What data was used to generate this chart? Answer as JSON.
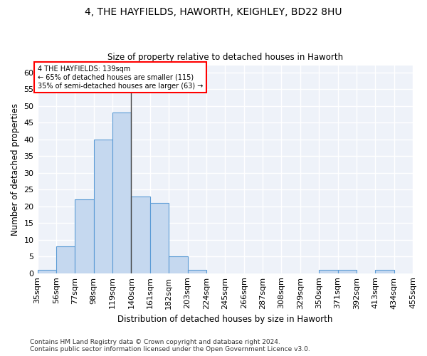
{
  "title_line1": "4, THE HAYFIELDS, HAWORTH, KEIGHLEY, BD22 8HU",
  "title_line2": "Size of property relative to detached houses in Haworth",
  "xlabel": "Distribution of detached houses by size in Haworth",
  "ylabel": "Number of detached properties",
  "bar_color": "#c5d8ef",
  "bar_edge_color": "#5b9bd5",
  "background_color": "#eef2f9",
  "grid_color": "#ffffff",
  "bins": [
    35,
    56,
    77,
    98,
    119,
    140,
    161,
    182,
    203,
    224,
    245,
    266,
    287,
    308,
    329,
    350,
    371,
    392,
    413,
    434,
    455
  ],
  "bin_labels": [
    "35sqm",
    "56sqm",
    "77sqm",
    "98sqm",
    "119sqm",
    "140sqm",
    "161sqm",
    "182sqm",
    "203sqm",
    "224sqm",
    "245sqm",
    "266sqm",
    "287sqm",
    "308sqm",
    "329sqm",
    "350sqm",
    "371sqm",
    "392sqm",
    "413sqm",
    "434sqm",
    "455sqm"
  ],
  "values": [
    1,
    8,
    22,
    40,
    48,
    23,
    21,
    5,
    1,
    0,
    0,
    0,
    0,
    0,
    0,
    1,
    1,
    0,
    1,
    0
  ],
  "ylim": [
    0,
    62
  ],
  "yticks": [
    0,
    5,
    10,
    15,
    20,
    25,
    30,
    35,
    40,
    45,
    50,
    55,
    60
  ],
  "annotation_text": "4 THE HAYFIELDS: 139sqm\n← 65% of detached houses are smaller (115)\n35% of semi-detached houses are larger (63) →",
  "vline_x": 140,
  "footnote1": "Contains HM Land Registry data © Crown copyright and database right 2024.",
  "footnote2": "Contains public sector information licensed under the Open Government Licence v3.0."
}
